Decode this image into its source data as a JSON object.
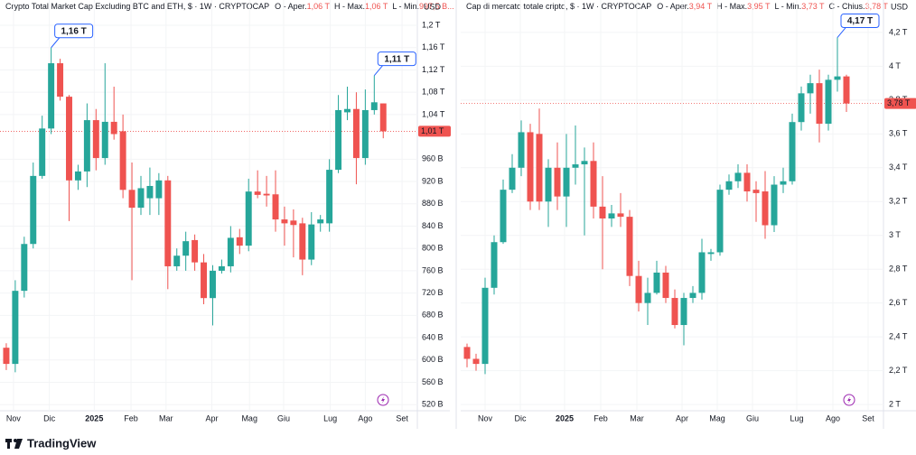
{
  "chart_data": [
    {
      "type": "candlestick",
      "title": "Crypto Total Market Cap Excluding BTC and ETH, $ · 1W · CRYPTOCAP",
      "ohlc_header": [
        {
          "label": "O - Aper.",
          "value": "1,06 T"
        },
        {
          "label": "H - Max.",
          "value": "1,06 T"
        },
        {
          "label": "L - Min.",
          "value": "997,5 B..."
        }
      ],
      "axis_unit": "USD",
      "up_color": "#26a69a",
      "down_color": "#ef5350",
      "grid": true,
      "open": [
        622,
        593,
        724,
        808,
        930,
        1015,
        1132,
        1072,
        922,
        938,
        1030,
        962,
        1027,
        1010,
        905,
        873,
        890,
        890,
        922,
        768,
        787,
        815,
        775,
        711,
        760,
        768,
        820,
        805,
        902,
        898,
        897,
        852,
        850,
        845,
        780,
        845,
        845,
        941,
        1044,
        1050,
        962,
        1048,
        1060
      ],
      "high": [
        630,
        743,
        821,
        954,
        1038,
        1160,
        1140,
        1075,
        950,
        1060,
        1050,
        1132,
        1090,
        1040,
        954,
        930,
        945,
        935,
        930,
        800,
        830,
        825,
        790,
        770,
        780,
        840,
        835,
        925,
        940,
        930,
        940,
        875,
        870,
        855,
        865,
        860,
        960,
        1075,
        1090,
        1080,
        1085,
        1110,
        1060
      ],
      "low": [
        582,
        578,
        712,
        800,
        925,
        1005,
        1065,
        849,
        905,
        910,
        940,
        950,
        995,
        890,
        743,
        860,
        860,
        860,
        727,
        760,
        760,
        760,
        700,
        662,
        755,
        757,
        790,
        795,
        890,
        875,
        830,
        805,
        784,
        752,
        770,
        830,
        830,
        935,
        1030,
        915,
        950,
        1040,
        997.5
      ],
      "close": [
        593,
        724,
        808,
        930,
        1015,
        1132,
        1072,
        922,
        938,
        1030,
        962,
        1027,
        1005,
        905,
        873,
        908,
        912,
        922,
        768,
        787,
        813,
        775,
        711,
        760,
        768,
        819,
        805,
        902,
        896,
        895,
        852,
        845,
        842,
        780,
        843,
        852,
        941,
        1048,
        1050,
        962,
        1048,
        1062,
        1010
      ],
      "xlim": [
        -0.7,
        45.8
      ],
      "xticks": [
        {
          "value": 0.8,
          "label": "Nov"
        },
        {
          "value": 4.8,
          "label": "Dic"
        },
        {
          "value": 9.8,
          "label": "2025"
        },
        {
          "value": 13.9,
          "label": "Feb"
        },
        {
          "value": 17.8,
          "label": "Mar"
        },
        {
          "value": 22.9,
          "label": "Apr"
        },
        {
          "value": 27.1,
          "label": "Mag"
        },
        {
          "value": 30.9,
          "label": "Giu"
        },
        {
          "value": 36.1,
          "label": "Lug"
        },
        {
          "value": 40,
          "label": "Ago"
        },
        {
          "value": 44.1,
          "label": "Set"
        }
      ],
      "ylim": [
        509,
        1213
      ],
      "yticks": [
        {
          "value": 520,
          "label": "520 B"
        },
        {
          "value": 560,
          "label": "560 B"
        },
        {
          "value": 600,
          "label": "600 B"
        },
        {
          "value": 640,
          "label": "640 B"
        },
        {
          "value": 680,
          "label": "680 B"
        },
        {
          "value": 720,
          "label": "720 B"
        },
        {
          "value": 760,
          "label": "760 B"
        },
        {
          "value": 800,
          "label": "800 B"
        },
        {
          "value": 840,
          "label": "840 B"
        },
        {
          "value": 880,
          "label": "880 B"
        },
        {
          "value": 920,
          "label": "920 B"
        },
        {
          "value": 960,
          "label": "960 B"
        },
        {
          "value": 1040,
          "label": "1,04 T"
        },
        {
          "value": 1080,
          "label": "1,08 T"
        },
        {
          "value": 1120,
          "label": "1,12 T"
        },
        {
          "value": 1160,
          "label": "1,16 T"
        },
        {
          "value": 1200,
          "label": "1,2 T"
        }
      ],
      "annotations": [
        {
          "value": 1160,
          "label": "1,16 T"
        },
        {
          "value": 1110,
          "label": "1,11 T"
        }
      ],
      "last_price": {
        "value": 1010,
        "label": "1,01 T"
      }
    },
    {
      "type": "candlestick",
      "title": "Cap di mercato totale cripto, $ · 1W · CRYPTOCAP",
      "ohlc_header": [
        {
          "label": "O - Aper.",
          "value": "3,94 T"
        },
        {
          "label": "H - Max.",
          "value": "3,95 T"
        },
        {
          "label": "L - Min.",
          "value": "3,73 T"
        },
        {
          "label": "C - Chius.",
          "value": "3,78 T"
        }
      ],
      "axis_unit": "USD",
      "up_color": "#26a69a",
      "down_color": "#ef5350",
      "grid": true,
      "open": [
        2.34,
        2.27,
        2.24,
        2.69,
        2.96,
        3.27,
        3.4,
        3.61,
        3.6,
        3.2,
        3.4,
        3.23,
        3.4,
        3.42,
        3.44,
        3.17,
        3.1,
        3.13,
        3.11,
        2.76,
        2.6,
        2.66,
        2.78,
        2.63,
        2.47,
        2.63,
        2.66,
        2.89,
        2.9,
        3.27,
        3.32,
        3.37,
        3.27,
        3.26,
        3.06,
        3.3,
        3.32,
        3.67,
        3.84,
        3.9,
        3.66,
        3.92,
        3.94
      ],
      "high": [
        2.36,
        2.3,
        2.75,
        3.0,
        3.33,
        3.48,
        3.68,
        3.66,
        3.75,
        3.45,
        3.55,
        3.6,
        3.65,
        3.52,
        3.55,
        3.35,
        3.18,
        3.25,
        3.15,
        2.85,
        2.75,
        2.85,
        2.82,
        2.68,
        2.66,
        2.7,
        2.98,
        2.92,
        3.3,
        3.36,
        3.42,
        3.42,
        3.32,
        3.38,
        3.35,
        3.4,
        3.72,
        3.88,
        3.95,
        3.98,
        3.95,
        4.17,
        3.95
      ],
      "low": [
        2.22,
        2.2,
        2.18,
        2.65,
        2.95,
        3.25,
        3.35,
        3.15,
        3.15,
        3.05,
        3.15,
        3.05,
        3.3,
        3.0,
        3.1,
        2.8,
        3.05,
        3.05,
        2.7,
        2.55,
        2.47,
        2.65,
        2.6,
        2.45,
        2.35,
        2.6,
        2.62,
        2.85,
        2.88,
        3.24,
        3.28,
        3.2,
        3.08,
        2.98,
        3.02,
        3.25,
        3.3,
        3.62,
        3.72,
        3.55,
        3.62,
        3.85,
        3.73
      ],
      "close": [
        2.27,
        2.24,
        2.69,
        2.96,
        3.27,
        3.4,
        3.61,
        3.2,
        3.2,
        3.4,
        3.23,
        3.4,
        3.42,
        3.44,
        3.17,
        3.1,
        3.13,
        3.11,
        2.76,
        2.6,
        2.66,
        2.78,
        2.63,
        2.47,
        2.63,
        2.66,
        2.9,
        2.9,
        3.27,
        3.32,
        3.37,
        3.26,
        3.25,
        3.06,
        3.3,
        3.32,
        3.67,
        3.84,
        3.9,
        3.66,
        3.92,
        3.94,
        3.78
      ],
      "xlim": [
        -0.7,
        46.1
      ],
      "xticks": [
        {
          "value": 2,
          "label": "Nov"
        },
        {
          "value": 5.9,
          "label": "Dic"
        },
        {
          "value": 10.8,
          "label": "2025"
        },
        {
          "value": 14.8,
          "label": "Feb"
        },
        {
          "value": 18.8,
          "label": "Mar"
        },
        {
          "value": 23.8,
          "label": "Apr"
        },
        {
          "value": 27.7,
          "label": "Mag"
        },
        {
          "value": 31.6,
          "label": "Giu"
        },
        {
          "value": 36.5,
          "label": "Lug"
        },
        {
          "value": 40.5,
          "label": "Ago"
        },
        {
          "value": 44.4,
          "label": "Set"
        }
      ],
      "ylim": [
        1.963,
        4.285
      ],
      "yticks": [
        {
          "value": 2,
          "label": "2 T"
        },
        {
          "value": 2.2,
          "label": "2,2 T"
        },
        {
          "value": 2.4,
          "label": "2,4 T"
        },
        {
          "value": 2.6,
          "label": "2,6 T"
        },
        {
          "value": 2.8,
          "label": "2,8 T"
        },
        {
          "value": 3,
          "label": "3 T"
        },
        {
          "value": 3.2,
          "label": "3,2 T"
        },
        {
          "value": 3.4,
          "label": "3,4 T"
        },
        {
          "value": 3.6,
          "label": "3,6 T"
        },
        {
          "value": 3.8,
          "label": "3,8 T"
        },
        {
          "value": 4,
          "label": "4 T"
        },
        {
          "value": 4.2,
          "label": "4,2 T"
        }
      ],
      "annotations": [
        {
          "value": 4.17,
          "label": "4,17 T"
        }
      ],
      "last_price": {
        "value": 3.78,
        "label": "3,78 T"
      }
    }
  ],
  "footer": {
    "brand": "TradingView"
  }
}
